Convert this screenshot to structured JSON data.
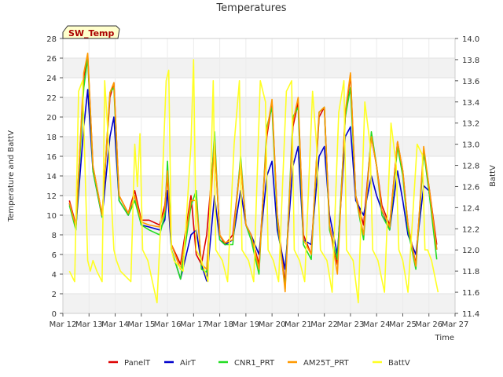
{
  "chart_data": {
    "type": "line",
    "title": "Temperatures",
    "xlabel": "Time",
    "ylabel": "Temperature and BattV",
    "y2label": "BattV",
    "station_label": "SW_Temp",
    "xlim": [
      0,
      15
    ],
    "ylim": [
      0,
      28
    ],
    "y2lim": [
      11.4,
      14.0
    ],
    "x_ticks": [
      0,
      1,
      2,
      3,
      4,
      5,
      6,
      7,
      8,
      9,
      10,
      11,
      12,
      13,
      14,
      15
    ],
    "x_tick_labels": [
      "Mar 12",
      "Mar 13",
      "Mar 14",
      "Mar 15",
      "Mar 16",
      "Mar 17",
      "Mar 18",
      "Mar 19",
      "Mar 20",
      "Mar 21",
      "Mar 22",
      "Mar 23",
      "Mar 24",
      "Mar 25",
      "Mar 26",
      "Mar 27"
    ],
    "y_ticks": [
      0,
      2,
      4,
      6,
      8,
      10,
      12,
      14,
      16,
      18,
      20,
      22,
      24,
      26,
      28
    ],
    "y_tick_labels": [
      "0",
      "2",
      "4",
      "6",
      "8",
      "10",
      "12",
      "14",
      "16",
      "18",
      "20",
      "22",
      "24",
      "26",
      "28"
    ],
    "y2_ticks": [
      11.4,
      11.6,
      11.8,
      12.0,
      12.2,
      12.4,
      12.6,
      12.8,
      13.0,
      13.2,
      13.4,
      13.6,
      13.8,
      14.0
    ],
    "y2_tick_labels": [
      "11.4",
      "11.6",
      "11.8",
      "12.0",
      "12.2",
      "12.4",
      "12.6",
      "12.8",
      "13.0",
      "13.2",
      "13.4",
      "13.6",
      "13.8",
      "14.0"
    ],
    "legend_position": "bottom",
    "series": [
      {
        "name": "PanelT",
        "color": "#dd0000",
        "axis": "left",
        "x": [
          0.25,
          0.5,
          0.8,
          0.95,
          1.15,
          1.5,
          1.8,
          1.95,
          2.15,
          2.5,
          2.75,
          3.0,
          3.3,
          3.7,
          3.9,
          4.0,
          4.15,
          4.5,
          4.9,
          5.1,
          5.3,
          5.5,
          5.8,
          6.0,
          6.2,
          6.5,
          6.8,
          7.0,
          7.2,
          7.5,
          7.8,
          8.0,
          8.2,
          8.5,
          8.8,
          9.0,
          9.2,
          9.5,
          9.8,
          10.0,
          10.2,
          10.5,
          10.8,
          11.0,
          11.2,
          11.5,
          11.8,
          12.0,
          12.2,
          12.5,
          12.8,
          13.0,
          13.2,
          13.5,
          13.8,
          14.0,
          14.3
        ],
        "y": [
          11.5,
          9.0,
          24.0,
          26.3,
          15.0,
          10.0,
          22.0,
          23.5,
          12.0,
          10.2,
          12.5,
          9.5,
          9.5,
          9.0,
          11.0,
          14.0,
          7.0,
          5.0,
          12.0,
          6.0,
          5.0,
          8.0,
          17.5,
          8.0,
          7.0,
          8.0,
          15.5,
          9.0,
          8.0,
          5.0,
          18.0,
          21.5,
          10.0,
          3.0,
          19.0,
          21.5,
          8.0,
          6.0,
          20.0,
          21.0,
          9.0,
          5.0,
          20.0,
          24.3,
          12.0,
          9.0,
          18.0,
          15.0,
          11.0,
          9.0,
          17.5,
          14.5,
          9.0,
          5.0,
          16.5,
          13.0,
          7.0
        ]
      },
      {
        "name": "AirT",
        "color": "#0000cc",
        "axis": "left",
        "x": [
          0.25,
          0.5,
          0.8,
          0.95,
          1.15,
          1.5,
          1.8,
          1.95,
          2.15,
          2.5,
          2.75,
          3.0,
          3.3,
          3.7,
          3.9,
          4.0,
          4.15,
          4.5,
          4.9,
          5.1,
          5.3,
          5.5,
          5.8,
          6.0,
          6.2,
          6.5,
          6.8,
          7.0,
          7.2,
          7.5,
          7.8,
          8.0,
          8.2,
          8.5,
          8.8,
          9.0,
          9.2,
          9.5,
          9.8,
          10.0,
          10.2,
          10.5,
          10.8,
          11.0,
          11.2,
          11.5,
          11.8,
          12.0,
          12.2,
          12.5,
          12.8,
          13.0,
          13.2,
          13.5,
          13.8,
          14.0,
          14.3
        ],
        "y": [
          11.2,
          8.8,
          19.0,
          22.8,
          14.5,
          9.8,
          18.0,
          20.0,
          11.5,
          10.0,
          12.0,
          9.0,
          8.8,
          8.5,
          9.5,
          12.5,
          6.5,
          3.5,
          8.0,
          8.5,
          5.0,
          3.3,
          12.0,
          7.5,
          7.0,
          7.5,
          12.5,
          9.0,
          8.0,
          6.0,
          14.0,
          15.5,
          8.5,
          4.5,
          15.0,
          17.0,
          7.5,
          7.0,
          16.0,
          17.0,
          10.0,
          6.0,
          18.0,
          19.0,
          11.5,
          10.0,
          14.0,
          12.0,
          10.5,
          8.5,
          14.5,
          11.5,
          8.0,
          6.0,
          13.0,
          12.5,
          6.5
        ]
      },
      {
        "name": "CNR1_PRT",
        "color": "#22dd22",
        "axis": "left",
        "x": [
          0.25,
          0.5,
          0.8,
          0.95,
          1.15,
          1.5,
          1.8,
          1.95,
          2.15,
          2.5,
          2.75,
          3.0,
          3.3,
          3.7,
          3.9,
          4.0,
          4.15,
          4.5,
          4.9,
          5.1,
          5.3,
          5.5,
          5.8,
          6.0,
          6.2,
          6.5,
          6.8,
          7.0,
          7.2,
          7.5,
          7.8,
          8.0,
          8.2,
          8.5,
          8.8,
          9.0,
          9.2,
          9.5,
          9.8,
          10.0,
          10.2,
          10.5,
          10.8,
          11.0,
          11.2,
          11.5,
          11.8,
          12.0,
          12.2,
          12.5,
          12.8,
          13.0,
          13.2,
          13.5,
          13.8,
          14.0,
          14.3
        ],
        "y": [
          11.0,
          8.5,
          23.0,
          26.0,
          14.5,
          9.8,
          22.5,
          23.0,
          11.5,
          10.0,
          11.5,
          9.0,
          8.5,
          8.0,
          10.0,
          15.5,
          6.5,
          3.5,
          11.0,
          12.5,
          4.5,
          4.2,
          18.5,
          7.5,
          7.0,
          7.0,
          16.0,
          9.0,
          7.5,
          4.0,
          19.0,
          21.0,
          9.5,
          2.5,
          20.0,
          21.0,
          7.0,
          5.5,
          20.5,
          21.0,
          8.5,
          5.5,
          20.0,
          23.0,
          12.0,
          7.5,
          18.5,
          15.0,
          10.0,
          8.5,
          17.0,
          14.0,
          8.5,
          4.5,
          16.5,
          12.5,
          5.5
        ]
      },
      {
        "name": "AM25T_PRT",
        "color": "#ff9900",
        "axis": "left",
        "x": [
          0.25,
          0.5,
          0.8,
          0.95,
          1.15,
          1.5,
          1.8,
          1.95,
          2.15,
          2.5,
          2.75,
          3.0,
          3.3,
          3.7,
          3.9,
          4.0,
          4.15,
          4.5,
          4.9,
          5.1,
          5.3,
          5.5,
          5.8,
          6.0,
          6.2,
          6.5,
          6.8,
          7.0,
          7.2,
          7.5,
          7.8,
          8.0,
          8.2,
          8.5,
          8.8,
          9.0,
          9.2,
          9.5,
          9.8,
          10.0,
          10.2,
          10.5,
          10.8,
          11.0,
          11.2,
          11.5,
          11.8,
          12.0,
          12.2,
          12.5,
          12.8,
          13.0,
          13.2,
          13.5,
          13.8,
          14.0,
          14.3
        ],
        "y": [
          11.3,
          8.8,
          24.5,
          26.5,
          15.0,
          10.0,
          22.5,
          23.5,
          12.0,
          10.2,
          12.0,
          9.3,
          9.0,
          8.8,
          10.5,
          14.5,
          7.0,
          4.5,
          11.5,
          11.5,
          5.0,
          4.5,
          17.5,
          8.0,
          7.2,
          7.5,
          15.5,
          9.0,
          8.0,
          4.5,
          18.5,
          21.8,
          10.0,
          2.2,
          19.5,
          22.0,
          7.5,
          6.0,
          20.5,
          21.0,
          9.0,
          4.0,
          20.5,
          24.5,
          12.0,
          8.0,
          18.0,
          15.0,
          10.5,
          8.8,
          17.5,
          14.5,
          9.0,
          4.8,
          17.0,
          13.0,
          6.5
        ]
      },
      {
        "name": "BattV",
        "color": "#ffff22",
        "axis": "right",
        "x": [
          0.25,
          0.45,
          0.6,
          0.75,
          0.95,
          1.05,
          1.15,
          1.3,
          1.5,
          1.6,
          1.75,
          1.95,
          2.05,
          2.2,
          2.6,
          2.75,
          2.85,
          2.95,
          3.05,
          3.25,
          3.6,
          3.75,
          3.95,
          4.05,
          4.15,
          4.25,
          4.6,
          4.8,
          4.9,
          5.0,
          5.1,
          5.3,
          5.55,
          5.75,
          5.85,
          6.1,
          6.3,
          6.55,
          6.75,
          6.85,
          7.1,
          7.3,
          7.55,
          7.75,
          7.85,
          8.05,
          8.25,
          8.55,
          8.75,
          8.85,
          9.05,
          9.25,
          9.55,
          9.7,
          9.85,
          10.1,
          10.3,
          10.55,
          10.75,
          10.85,
          11.1,
          11.3,
          11.55,
          11.75,
          11.85,
          12.05,
          12.3,
          12.55,
          12.75,
          12.85,
          13.0,
          13.2,
          13.55,
          13.75,
          13.85,
          13.95,
          14.1,
          14.35
        ],
        "y": [
          11.8,
          11.7,
          13.5,
          13.6,
          11.9,
          11.8,
          11.9,
          11.8,
          11.7,
          13.6,
          13.0,
          12.0,
          11.9,
          11.8,
          11.7,
          13.0,
          12.6,
          13.1,
          12.0,
          11.9,
          11.5,
          12.3,
          13.6,
          13.7,
          12.0,
          11.9,
          11.8,
          12.6,
          13.0,
          13.8,
          12.0,
          11.9,
          11.7,
          13.6,
          12.0,
          11.9,
          11.7,
          13.0,
          13.6,
          12.0,
          11.9,
          11.7,
          13.6,
          13.4,
          12.0,
          11.9,
          11.7,
          13.5,
          13.6,
          12.0,
          11.9,
          11.7,
          13.5,
          13.0,
          12.0,
          11.9,
          11.6,
          13.3,
          13.6,
          12.0,
          11.9,
          11.5,
          13.4,
          13.0,
          12.0,
          11.9,
          11.6,
          13.2,
          12.8,
          12.0,
          11.9,
          11.6,
          13.0,
          12.9,
          12.0,
          12.0,
          11.9,
          11.6
        ]
      }
    ]
  }
}
